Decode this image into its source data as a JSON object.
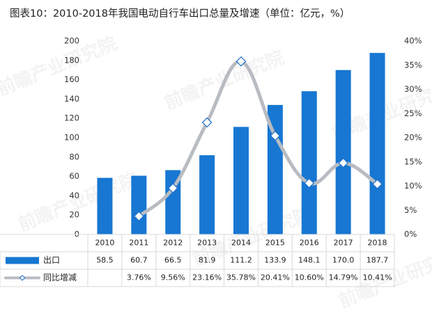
{
  "title": "图表10：2010-2018年我国电动自行车出口总量及增速（单位：亿元，%）",
  "watermark": "前瞻产业研究院",
  "colors": {
    "bar": "#1777d2",
    "line": "#b8bcc2",
    "marker_fill": "#ffffff",
    "marker_stroke": "#1f6fc8",
    "grid": "#d9d9d9"
  },
  "chart_data": {
    "type": "bar",
    "categories": [
      "2010",
      "2011",
      "2012",
      "2013",
      "2014",
      "2015",
      "2016",
      "2017",
      "2018"
    ],
    "series": [
      {
        "name": "出口",
        "type": "bar",
        "axis": "left",
        "values": [
          58.5,
          60.7,
          66.5,
          81.9,
          111.2,
          133.9,
          148.1,
          170.0,
          187.7
        ],
        "labels": [
          "58.5",
          "60.7",
          "66.5",
          "81.9",
          "111.2",
          "133.9",
          "148.1",
          "170.0",
          "187.7"
        ]
      },
      {
        "name": "同比增减",
        "type": "line",
        "axis": "right",
        "values": [
          null,
          3.76,
          9.56,
          23.16,
          35.78,
          20.41,
          10.6,
          14.79,
          10.41
        ],
        "labels": [
          "",
          "3.76%",
          "9.56%",
          "23.16%",
          "35.78%",
          "20.41%",
          "10.60%",
          "14.79%",
          "10.41%"
        ]
      }
    ],
    "y_left": {
      "min": 0,
      "max": 200,
      "step": 20,
      "tick_labels": [
        "0",
        "20",
        "40",
        "60",
        "80",
        "100",
        "120",
        "140",
        "160",
        "180",
        "200"
      ]
    },
    "y_right": {
      "min": 0,
      "max": 40,
      "step": 5,
      "tick_labels": [
        "0%",
        "5%",
        "10%",
        "15%",
        "20%",
        "25%",
        "30%",
        "35%",
        "40%"
      ]
    },
    "grid": false,
    "legend": "data-table-below"
  }
}
